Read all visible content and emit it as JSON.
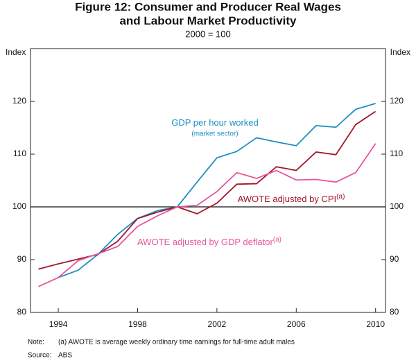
{
  "chart_data": {
    "type": "line",
    "title": [
      "Figure 12: Consumer and Producer Real Wages",
      "and Labour Market Productivity"
    ],
    "subtitle": "2000 = 100",
    "y_label": "Index",
    "y2_label": "Index",
    "x": [
      1993,
      1994,
      1995,
      1996,
      1997,
      1998,
      1999,
      2000,
      2001,
      2002,
      2003,
      2004,
      2005,
      2006,
      2007,
      2008,
      2009,
      2010
    ],
    "series": [
      {
        "name": "GDP per hour worked",
        "sublabel": "(market sector)",
        "color": "#1b8fc2",
        "values": [
          null,
          86.6,
          88.0,
          91.0,
          94.8,
          97.8,
          99.3,
          100,
          104.7,
          109.3,
          110.5,
          113.1,
          112.3,
          111.6,
          115.4,
          115.1,
          118.5,
          119.6
        ]
      },
      {
        "name": "AWOTE adjusted by CPI",
        "note": "(a)",
        "color": "#a3162a",
        "values": [
          88.2,
          89.2,
          90.1,
          91.0,
          93.5,
          97.8,
          99.0,
          100,
          98.7,
          100.7,
          104.3,
          104.4,
          107.6,
          106.9,
          110.4,
          109.9,
          115.6,
          118.1
        ]
      },
      {
        "name": "AWOTE adjusted by GDP deflator",
        "note": "(a)",
        "color": "#e8539e",
        "values": [
          84.9,
          86.6,
          89.8,
          91.1,
          92.5,
          96.3,
          98.3,
          100,
          100.3,
          102.9,
          106.5,
          105.4,
          106.9,
          105.1,
          105.2,
          104.7,
          106.5,
          112.0
        ]
      }
    ],
    "xlim": [
      1992.6,
      2010.5
    ],
    "xticks": [
      1994,
      1998,
      2002,
      2006,
      2010
    ],
    "ylim": [
      80,
      130
    ],
    "yticks": [
      80,
      90,
      100,
      110,
      120
    ],
    "y2lim": [
      80,
      130
    ],
    "y2ticks": [
      80,
      90,
      100,
      110,
      120
    ],
    "reference_line": 100,
    "grid": false,
    "footnote_label": "Note:",
    "footnote": "(a) AWOTE is average weekly ordinary time earnings for full-time adult males",
    "source_label": "Source:",
    "source": "ABS"
  }
}
